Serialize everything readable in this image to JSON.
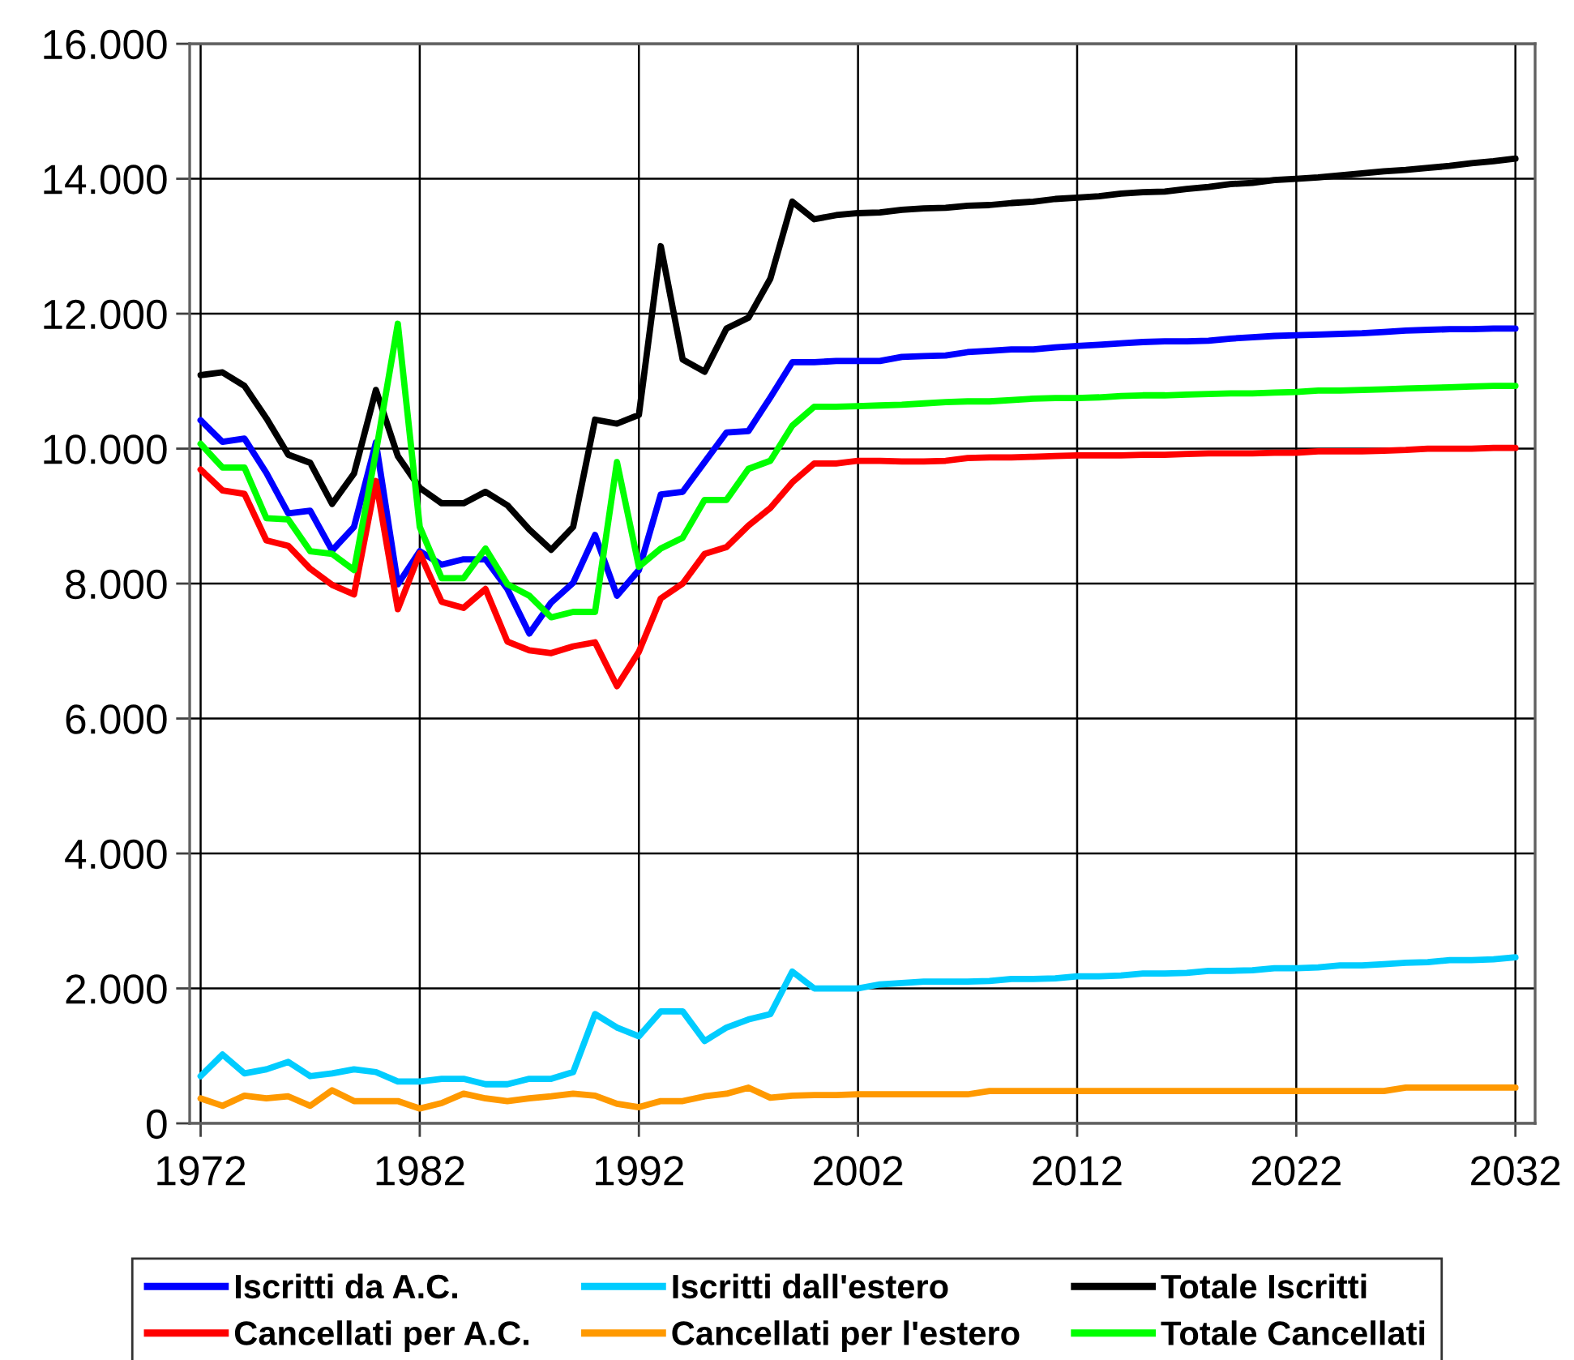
{
  "chart_data": {
    "type": "line",
    "x": [
      1972,
      1973,
      1974,
      1975,
      1976,
      1977,
      1978,
      1979,
      1980,
      1981,
      1982,
      1983,
      1984,
      1985,
      1986,
      1987,
      1988,
      1989,
      1990,
      1991,
      1992,
      1993,
      1994,
      1995,
      1996,
      1997,
      1998,
      1999,
      2000,
      2001,
      2002,
      2003,
      2004,
      2005,
      2006,
      2007,
      2008,
      2009,
      2010,
      2011,
      2012,
      2013,
      2014,
      2015,
      2016,
      2017,
      2018,
      2019,
      2020,
      2021,
      2022,
      2023,
      2024,
      2025,
      2026,
      2027,
      2028,
      2029,
      2030,
      2031,
      2032
    ],
    "xlim": [
      1971.5,
      2032.9
    ],
    "xticks": [
      1972,
      1982,
      1992,
      2002,
      2012,
      2022,
      2032
    ],
    "ylim": [
      0,
      16000
    ],
    "yticks": [
      {
        "value": 0,
        "label": "0"
      },
      {
        "value": 2000,
        "label": "2.000"
      },
      {
        "value": 4000,
        "label": "4.000"
      },
      {
        "value": 6000,
        "label": "6.000"
      },
      {
        "value": 8000,
        "label": "8.000"
      },
      {
        "value": 10000,
        "label": "10.000"
      },
      {
        "value": 12000,
        "label": "12.000"
      },
      {
        "value": 14000,
        "label": "14.000"
      },
      {
        "value": 16000,
        "label": "16.000"
      }
    ],
    "grid": true,
    "legend": "bottom",
    "series": [
      {
        "name": "Iscritti da A.C.",
        "color": "#0000ff",
        "values": [
          10420,
          10100,
          10150,
          9640,
          9040,
          9080,
          8490,
          8840,
          10090,
          7990,
          8480,
          8280,
          8360,
          8360,
          7920,
          7260,
          7720,
          8010,
          8720,
          7820,
          8200,
          9320,
          9360,
          9800,
          10240,
          10260,
          10760,
          11280,
          11280,
          11300,
          11300,
          11300,
          11360,
          11370,
          11380,
          11430,
          11450,
          11470,
          11470,
          11500,
          11520,
          11540,
          11560,
          11580,
          11590,
          11590,
          11600,
          11630,
          11650,
          11670,
          11680,
          11690,
          11700,
          11710,
          11730,
          11750,
          11760,
          11770,
          11770,
          11780,
          11780
        ]
      },
      {
        "name": "Iscritti dall'estero",
        "color": "#00ccff",
        "values": [
          700,
          1020,
          740,
          800,
          910,
          700,
          740,
          800,
          760,
          620,
          620,
          660,
          660,
          580,
          580,
          660,
          660,
          760,
          1620,
          1420,
          1290,
          1660,
          1660,
          1220,
          1420,
          1540,
          1620,
          2250,
          2000,
          2000,
          2000,
          2060,
          2080,
          2100,
          2100,
          2100,
          2110,
          2140,
          2140,
          2150,
          2180,
          2180,
          2190,
          2220,
          2220,
          2230,
          2260,
          2260,
          2270,
          2300,
          2300,
          2310,
          2340,
          2340,
          2360,
          2380,
          2390,
          2420,
          2420,
          2430,
          2460
        ]
      },
      {
        "name": "Totale Iscritti",
        "color": "#000000",
        "values": [
          11090,
          11130,
          10930,
          10450,
          9910,
          9790,
          9180,
          9630,
          10870,
          9890,
          9420,
          9190,
          9190,
          9360,
          9160,
          8800,
          8500,
          8840,
          10430,
          10370,
          10500,
          13000,
          11320,
          11140,
          11780,
          11940,
          12520,
          13660,
          13400,
          13460,
          13490,
          13500,
          13540,
          13560,
          13570,
          13600,
          13610,
          13640,
          13660,
          13700,
          13720,
          13740,
          13780,
          13800,
          13810,
          13850,
          13880,
          13920,
          13940,
          13980,
          14000,
          14020,
          14050,
          14080,
          14110,
          14130,
          14160,
          14190,
          14230,
          14260,
          14300
        ]
      },
      {
        "name": "Cancellati per A.C.",
        "color": "#ff0000",
        "values": [
          9690,
          9380,
          9330,
          8640,
          8560,
          8220,
          7980,
          7840,
          9520,
          7620,
          8450,
          7730,
          7640,
          7920,
          7140,
          7010,
          6970,
          7070,
          7130,
          6480,
          6990,
          7780,
          8000,
          8440,
          8540,
          8860,
          9120,
          9500,
          9780,
          9780,
          9820,
          9820,
          9810,
          9810,
          9820,
          9860,
          9870,
          9870,
          9880,
          9890,
          9900,
          9900,
          9900,
          9910,
          9910,
          9920,
          9930,
          9930,
          9930,
          9940,
          9940,
          9960,
          9960,
          9960,
          9970,
          9980,
          10000,
          10000,
          10000,
          10010,
          10010
        ]
      },
      {
        "name": "Cancellati per l'estero",
        "color": "#ff9900",
        "values": [
          370,
          260,
          410,
          370,
          400,
          260,
          490,
          330,
          330,
          330,
          220,
          300,
          440,
          370,
          330,
          370,
          400,
          440,
          410,
          290,
          240,
          330,
          330,
          400,
          440,
          530,
          380,
          410,
          420,
          420,
          430,
          430,
          430,
          430,
          430,
          430,
          480,
          480,
          480,
          480,
          480,
          480,
          480,
          480,
          480,
          480,
          480,
          480,
          480,
          480,
          480,
          480,
          480,
          480,
          480,
          530,
          530,
          530,
          530,
          530,
          530
        ]
      },
      {
        "name": "Totale Cancellati",
        "color": "#00ff00",
        "values": [
          10070,
          9720,
          9720,
          8970,
          8950,
          8480,
          8440,
          8200,
          9950,
          11850,
          8840,
          8080,
          8080,
          8520,
          7990,
          7820,
          7500,
          7580,
          7580,
          9800,
          8250,
          8520,
          8680,
          9240,
          9240,
          9700,
          9820,
          10340,
          10620,
          10620,
          10630,
          10640,
          10650,
          10670,
          10690,
          10700,
          10700,
          10720,
          10740,
          10750,
          10750,
          10760,
          10780,
          10790,
          10790,
          10800,
          10810,
          10820,
          10820,
          10830,
          10840,
          10860,
          10860,
          10870,
          10880,
          10890,
          10900,
          10910,
          10920,
          10930,
          10930
        ]
      }
    ]
  }
}
